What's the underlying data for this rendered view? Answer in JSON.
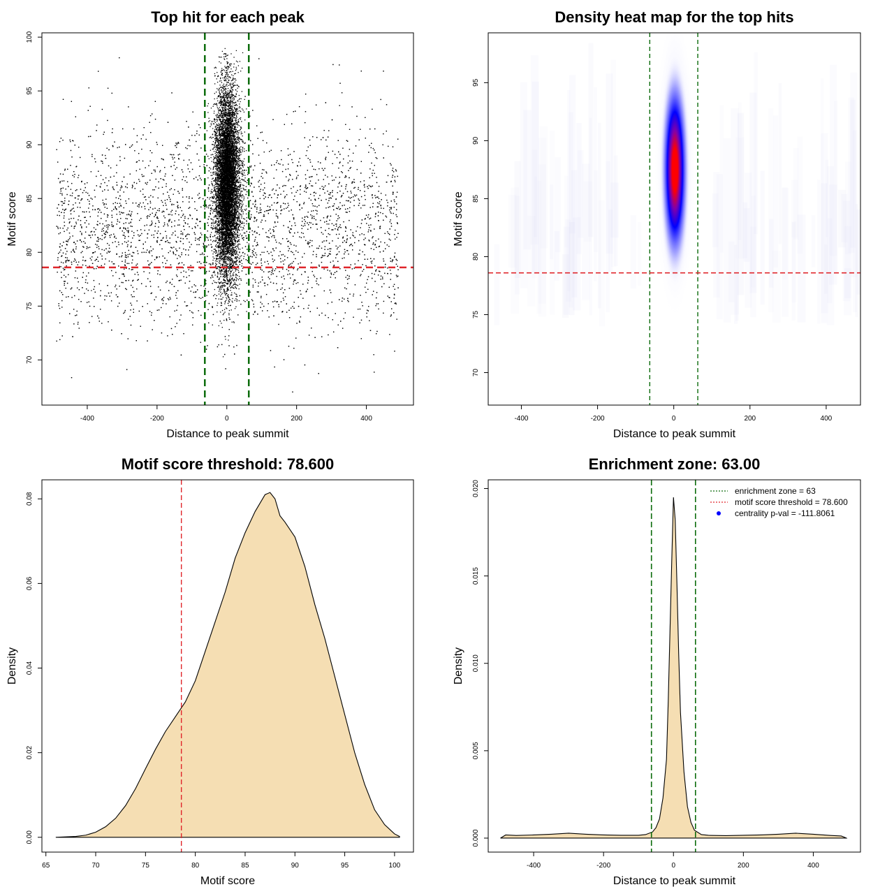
{
  "colors": {
    "threshold_line": "#e0262b",
    "zone_line": "#0b6b0b",
    "fill": "#f5deb3",
    "heat_low": "#ffffff",
    "heat_mid": "#0000ff",
    "heat_high": "#ff0000",
    "points": "#000000"
  },
  "chart_data": [
    {
      "type": "scatter",
      "title": "Top hit for each peak",
      "xlabel": "Distance to peak summit",
      "ylabel": "Motif score",
      "xlim": [
        -530,
        535
      ],
      "ylim": [
        65.8,
        100.4
      ],
      "xticks": [
        -400,
        -200,
        0,
        200,
        400
      ],
      "yticks": [
        70,
        75,
        80,
        85,
        90,
        95,
        100
      ],
      "hline": 78.6,
      "vlines": [
        -63,
        63
      ],
      "point_clouds": [
        {
          "name": "central",
          "x_center": 0,
          "x_sd": 13,
          "y_center": 86.5,
          "y_sd": 4.3,
          "n": 9000
        },
        {
          "name": "background",
          "x_range": [
            -490,
            490
          ],
          "y_center": 82,
          "y_sd": 4.5,
          "n": 6500
        }
      ]
    },
    {
      "type": "heatmap",
      "title": "Density heat map for the top hits",
      "xlabel": "Distance to peak summit",
      "ylabel": "Motif score",
      "xlim": [
        -487,
        490
      ],
      "ylim": [
        67.2,
        99.3
      ],
      "xticks": [
        -400,
        -200,
        0,
        200,
        400
      ],
      "yticks": [
        70,
        75,
        80,
        85,
        90,
        95
      ],
      "hline": 78.6,
      "vlines": [
        -63,
        63
      ],
      "peak": {
        "x": 3,
        "y": 87.5
      }
    },
    {
      "type": "area",
      "title": "Motif score threshold: 78.600",
      "xlabel": "Motif score",
      "ylabel": "Density",
      "xlim": [
        64.6,
        101.9
      ],
      "ylim": [
        -0.0035,
        0.0845
      ],
      "xticks": [
        65,
        70,
        75,
        80,
        85,
        90,
        95,
        100
      ],
      "yticks": [
        0.0,
        0.02,
        0.04,
        0.06,
        0.08
      ],
      "ytick_labels": [
        "0.00",
        "0.02",
        "0.04",
        "0.06",
        "0.08"
      ],
      "vline": 78.6,
      "x": [
        66,
        68,
        69,
        70,
        71,
        72,
        73,
        74,
        75,
        76,
        77,
        78,
        79,
        80,
        81,
        82,
        83,
        84,
        85,
        86,
        87,
        87.5,
        88,
        88.5,
        89,
        90,
        91,
        92,
        93,
        94,
        95,
        96,
        97,
        98,
        99,
        100,
        100.5
      ],
      "y": [
        0.0,
        0.0002,
        0.0005,
        0.0012,
        0.0025,
        0.0045,
        0.0075,
        0.0115,
        0.0162,
        0.0208,
        0.025,
        0.0285,
        0.032,
        0.037,
        0.044,
        0.051,
        0.058,
        0.066,
        0.072,
        0.077,
        0.081,
        0.0815,
        0.08,
        0.076,
        0.0745,
        0.071,
        0.064,
        0.055,
        0.047,
        0.038,
        0.029,
        0.02,
        0.0125,
        0.0065,
        0.003,
        0.0008,
        0.0002
      ]
    },
    {
      "type": "area",
      "title": "Enrichment zone: 63.00",
      "xlabel": "Distance to peak summit",
      "ylabel": "Density",
      "xlim": [
        -530,
        535
      ],
      "ylim": [
        -0.0008,
        0.0205
      ],
      "xticks": [
        -400,
        -200,
        0,
        200,
        400
      ],
      "yticks": [
        0.0,
        0.005,
        0.01,
        0.015,
        0.02
      ],
      "ytick_labels": [
        "0.000",
        "0.005",
        "0.010",
        "0.015",
        "0.020"
      ],
      "vlines": [
        -63,
        63
      ],
      "x": [
        -495,
        -480,
        -450,
        -400,
        -350,
        -300,
        -250,
        -200,
        -150,
        -100,
        -80,
        -60,
        -50,
        -40,
        -30,
        -20,
        -15,
        -10,
        -5,
        0,
        5,
        10,
        15,
        20,
        30,
        40,
        50,
        60,
        80,
        100,
        150,
        200,
        250,
        300,
        350,
        400,
        450,
        480,
        495
      ],
      "y": [
        0.0,
        0.00018,
        0.00015,
        0.00018,
        0.00022,
        0.00028,
        0.00022,
        0.00018,
        0.00016,
        0.00016,
        0.0002,
        0.00035,
        0.0006,
        0.0011,
        0.0023,
        0.0045,
        0.0078,
        0.0118,
        0.0158,
        0.0195,
        0.0182,
        0.0145,
        0.0105,
        0.0072,
        0.0038,
        0.0018,
        0.0009,
        0.00045,
        0.0002,
        0.00016,
        0.00014,
        0.00016,
        0.00018,
        0.00022,
        0.00028,
        0.00022,
        0.00015,
        0.00012,
        0.0
      ],
      "legend": [
        {
          "label": "enrichment zone = 63",
          "style": "dotted",
          "color": "#0b6b0b"
        },
        {
          "label": "motif score threshold = 78.600",
          "style": "dotted",
          "color": "#e0262b"
        },
        {
          "label": "centrality p-val = -111.8061",
          "style": "point",
          "color": "#0000ff"
        }
      ]
    }
  ]
}
